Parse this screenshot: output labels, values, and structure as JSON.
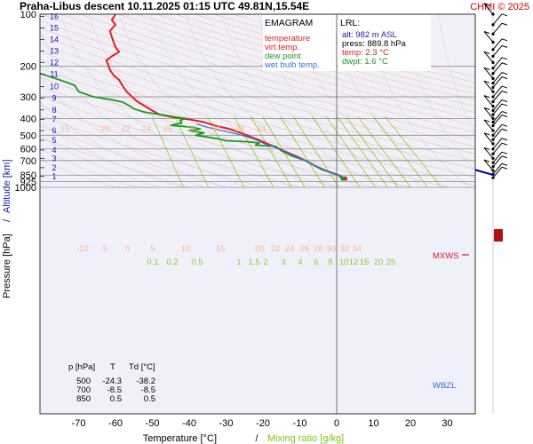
{
  "header": {
    "title": "Praha-Libus   descent   10.11.2025 01:15 UTC  49.81N,15.54E",
    "copyright": "CHMI © 2025"
  },
  "chart_data": {
    "type": "line",
    "diagram": "emagram",
    "title": "Praha-Libus   descent   10.11.2025 01:15 UTC  49.81N,15.54E",
    "xlabel": "Temperature [°C]",
    "xlabel_sep": "/",
    "xlabel2": "Mixing ratio [g/kg]",
    "ylabel": "Pressure [hPa]",
    "ylabel_sep": "/",
    "ylabel2": "Altitude [km]",
    "xlim": [
      -80,
      40
    ],
    "ylim": [
      1000,
      100
    ],
    "yscale": "log",
    "x_ticks": [
      -70,
      -60,
      -50,
      -40,
      -30,
      -20,
      -10,
      0,
      10,
      20,
      30
    ],
    "y_ticks": [
      100,
      200,
      300,
      400,
      500,
      600,
      700,
      850,
      925,
      1000
    ],
    "altitude_ticks_km": [
      {
        "label": "1",
        "p": 865
      },
      {
        "label": "2",
        "p": 770
      },
      {
        "label": "3",
        "p": 680
      },
      {
        "label": "4",
        "p": 608
      },
      {
        "label": "5",
        "p": 535
      },
      {
        "label": "6",
        "p": 470
      },
      {
        "label": "7",
        "p": 405
      },
      {
        "label": "8",
        "p": 357
      },
      {
        "label": "9",
        "p": 305
      },
      {
        "label": "10",
        "p": 262
      },
      {
        "label": "11",
        "p": 222
      },
      {
        "label": "12",
        "p": 190
      },
      {
        "label": "13",
        "p": 163
      },
      {
        "label": "14",
        "p": 140
      },
      {
        "label": "15",
        "p": 120
      },
      {
        "label": "16",
        "p": 103
      }
    ],
    "legend": {
      "header": "EMAGRAM",
      "entries": [
        {
          "label": "temperature",
          "color": "#e02020"
        },
        {
          "label": "virt.temp.",
          "color": "#e02020"
        },
        {
          "label": "dew point",
          "color": "#1a9a1a"
        },
        {
          "label": "wet bulb temp.",
          "color": "#3a6fd8"
        }
      ]
    },
    "lrl": {
      "header": "LRL:",
      "alt": "alt: 982 m ASL",
      "press": "press: 889.8 hPa",
      "temp": "temp: 2.3 °C",
      "dwpt": "dwpt: 1.6 °C"
    },
    "levels_table": {
      "headers": [
        "p [hPa]",
        "T",
        "Td [°C]"
      ],
      "rows": [
        [
          "500",
          "-24.3",
          "-38.2"
        ],
        [
          "700",
          "-8.5",
          "-8.5"
        ],
        [
          "850",
          "0.5",
          "0.5"
        ]
      ]
    },
    "markers": [
      {
        "label": "MXWS",
        "p": 400
      },
      {
        "label": "WBZL",
        "p": 840
      }
    ],
    "dry_adiabat_labels_upper": [
      "15",
      "20",
      "22",
      "24",
      "26",
      "28",
      "30",
      "32",
      "34"
    ],
    "dry_adiabat_labels_lower": [
      "-10",
      "-5",
      "0",
      "5",
      "10",
      "15",
      "20",
      "22",
      "24",
      "26",
      "28",
      "30",
      "32",
      "34"
    ],
    "mixing_ratio_labels": [
      "0.1",
      "0.2",
      "0.5",
      "1",
      "1.5",
      "2",
      "3",
      "4",
      "6",
      "8",
      "10",
      "12",
      "15",
      "20",
      "25"
    ],
    "series": [
      {
        "name": "temperature",
        "color": "#e02020",
        "points": [
          [
            2.3,
            889.8
          ],
          [
            0.5,
            850
          ],
          [
            -3,
            800
          ],
          [
            -6,
            750
          ],
          [
            -8.5,
            700
          ],
          [
            -11,
            660
          ],
          [
            -14,
            620
          ],
          [
            -17,
            580
          ],
          [
            -20.5,
            540
          ],
          [
            -24.3,
            500
          ],
          [
            -29,
            460
          ],
          [
            -33,
            440
          ],
          [
            -36,
            420
          ],
          [
            -40,
            405
          ],
          [
            -44,
            395
          ],
          [
            -48,
            380
          ],
          [
            -50,
            360
          ],
          [
            -52,
            340
          ],
          [
            -54,
            320
          ],
          [
            -55.5,
            300
          ],
          [
            -57,
            280
          ],
          [
            -58,
            260
          ],
          [
            -59,
            240
          ],
          [
            -60.5,
            225
          ],
          [
            -61.5,
            210
          ],
          [
            -62,
            195
          ],
          [
            -62.5,
            185
          ],
          [
            -61,
            175
          ],
          [
            -59,
            165
          ],
          [
            -60,
            155
          ],
          [
            -60.5,
            145
          ],
          [
            -61,
            135
          ],
          [
            -61.5,
            125
          ],
          [
            -60,
            115
          ],
          [
            -61,
            108
          ],
          [
            -60,
            100
          ]
        ]
      },
      {
        "name": "dew point",
        "color": "#1a9a1a",
        "points": [
          [
            1.6,
            889.8
          ],
          [
            0.5,
            850
          ],
          [
            -4,
            790
          ],
          [
            -8.5,
            700
          ],
          [
            -12,
            660
          ],
          [
            -15,
            615
          ],
          [
            -16.5,
            580
          ],
          [
            -22,
            570
          ],
          [
            -21,
            555
          ],
          [
            -24,
            545
          ],
          [
            -30,
            538
          ],
          [
            -32,
            525
          ],
          [
            -38.2,
            500
          ],
          [
            -36,
            485
          ],
          [
            -40,
            470
          ],
          [
            -37,
            460
          ],
          [
            -39,
            450
          ],
          [
            -45,
            438
          ],
          [
            -42,
            425
          ],
          [
            -42.5,
            410
          ],
          [
            -41,
            400
          ],
          [
            -44,
            392
          ],
          [
            -47,
            382
          ],
          [
            -52,
            368
          ],
          [
            -55,
            352
          ],
          [
            -56,
            340
          ],
          [
            -58,
            322
          ],
          [
            -61,
            312
          ],
          [
            -66,
            300
          ],
          [
            -70,
            280
          ],
          [
            -71,
            258
          ],
          [
            -75,
            240
          ],
          [
            -79,
            225
          ],
          [
            -85,
            205
          ]
        ]
      },
      {
        "name": "wet bulb temp.",
        "color": "#3a6fd8",
        "points": [
          [
            2.0,
            889.8
          ],
          [
            0.5,
            850
          ],
          [
            -3.5,
            795
          ],
          [
            -8.5,
            700
          ],
          [
            -12.5,
            645
          ],
          [
            -16,
            595
          ],
          [
            -19.5,
            560
          ],
          [
            -23,
            520
          ],
          [
            -26.5,
            495
          ],
          [
            -31,
            470
          ],
          [
            -35,
            450
          ],
          [
            -38,
            430
          ]
        ]
      }
    ],
    "wind_profile_p": [
      100,
      115,
      130,
      145,
      160,
      175,
      190,
      205,
      220,
      235,
      250,
      265,
      280,
      300,
      320,
      340,
      360,
      380,
      400,
      420,
      440,
      470,
      500,
      530,
      560,
      600,
      640,
      680,
      720,
      760,
      800,
      840,
      880
    ]
  }
}
